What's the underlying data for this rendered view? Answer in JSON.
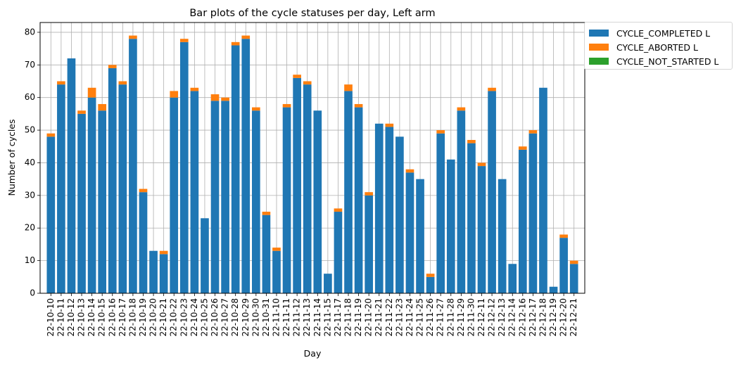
{
  "chart_data": {
    "type": "bar",
    "stacked": true,
    "title": "Bar plots of the cycle statuses per day, Left arm",
    "xlabel": "Day",
    "ylabel": "Number of cycles",
    "ylim": [
      0,
      83
    ],
    "yticks": [
      0,
      10,
      20,
      30,
      40,
      50,
      60,
      70,
      80
    ],
    "grid": true,
    "legend_position": "outside top-right",
    "categories": [
      "22-10-10",
      "22-10-11",
      "22-10-12",
      "22-10-13",
      "22-10-14",
      "22-10-15",
      "22-10-16",
      "22-10-17",
      "22-10-18",
      "22-10-19",
      "22-10-20",
      "22-10-21",
      "22-10-22",
      "22-10-23",
      "22-10-24",
      "22-10-25",
      "22-10-26",
      "22-10-27",
      "22-10-28",
      "22-10-29",
      "22-10-30",
      "22-10-31",
      "22-11-10",
      "22-11-11",
      "22-11-12",
      "22-11-13",
      "22-11-14",
      "22-11-15",
      "22-11-17",
      "22-11-18",
      "22-11-19",
      "22-11-20",
      "22-11-21",
      "22-11-22",
      "22-11-23",
      "22-11-24",
      "22-11-25",
      "22-11-26",
      "22-11-27",
      "22-11-28",
      "22-11-29",
      "22-11-30",
      "22-12-11",
      "22-12-12",
      "22-12-13",
      "22-12-14",
      "22-12-16",
      "22-12-17",
      "22-12-18",
      "22-12-19",
      "22-12-20",
      "22-12-21"
    ],
    "series": [
      {
        "name": "CYCLE_COMPLETED L",
        "color": "#1f77b4",
        "values": [
          48,
          64,
          72,
          55,
          60,
          56,
          69,
          64,
          78,
          31,
          13,
          12,
          60,
          77,
          62,
          23,
          59,
          59,
          76,
          78,
          56,
          24,
          13,
          57,
          66,
          64,
          56,
          6,
          25,
          62,
          57,
          30,
          52,
          51,
          48,
          37,
          35,
          5,
          49,
          41,
          56,
          46,
          39,
          62,
          35,
          9,
          44,
          49,
          63,
          2,
          17,
          9
        ]
      },
      {
        "name": "CYCLE_ABORTED L",
        "color": "#ff7f0e",
        "values": [
          1,
          1,
          0,
          1,
          3,
          2,
          1,
          1,
          1,
          1,
          0,
          1,
          2,
          1,
          1,
          0,
          2,
          1,
          1,
          1,
          1,
          1,
          1,
          1,
          1,
          1,
          0,
          0,
          1,
          2,
          1,
          1,
          0,
          1,
          0,
          1,
          0,
          1,
          1,
          0,
          1,
          1,
          1,
          1,
          0,
          0,
          1,
          1,
          0,
          0,
          1,
          1
        ]
      },
      {
        "name": "CYCLE_NOT_STARTED L",
        "color": "#2ca02c",
        "values": [
          0,
          0,
          0,
          0,
          0,
          0,
          0,
          0,
          0,
          0,
          0,
          0,
          0,
          0,
          0,
          0,
          0,
          0,
          0,
          0,
          0,
          0,
          0,
          0,
          0,
          0,
          0,
          0,
          0,
          0,
          0,
          0,
          0,
          0,
          0,
          0,
          0,
          0,
          0,
          0,
          0,
          0,
          0,
          0,
          0,
          0,
          0,
          0,
          0,
          0,
          0,
          0
        ]
      }
    ]
  }
}
